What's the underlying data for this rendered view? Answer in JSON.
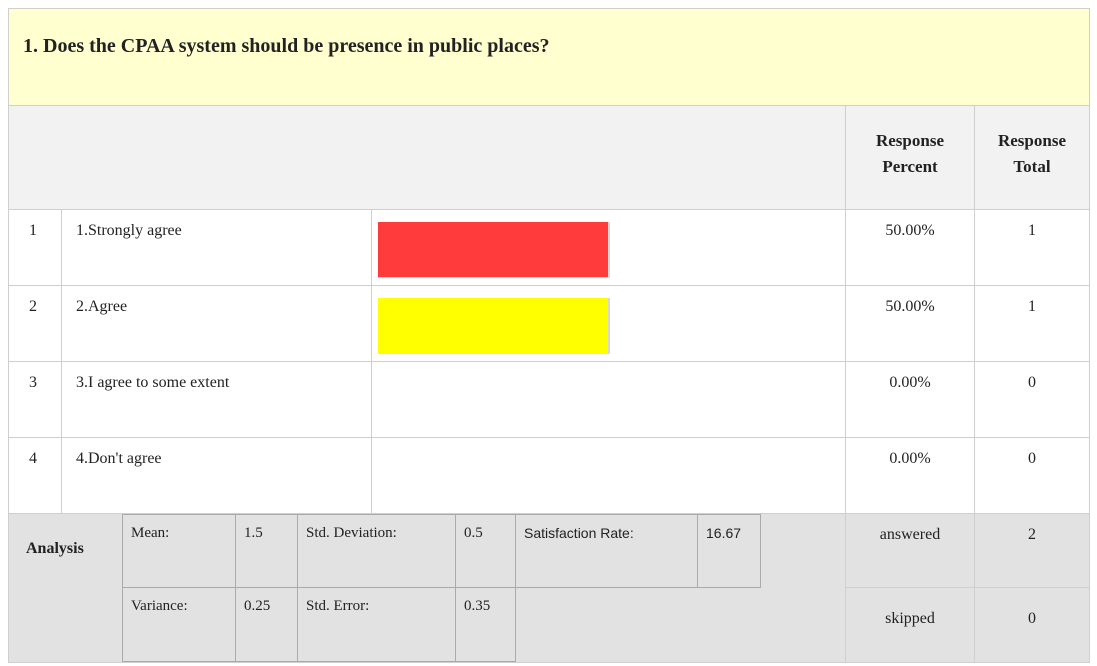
{
  "question": {
    "title": "1. Does the CPAA system should be presence in public places?"
  },
  "table": {
    "headers": [
      "Response Percent",
      "Response Total"
    ],
    "rows": [
      {
        "number": "1",
        "label": "1.Strongly agree",
        "percent": 50,
        "percent_label": "50.00%",
        "total": "1",
        "color": "#ff3b3b"
      },
      {
        "number": "2",
        "label": "2.Agree",
        "percent": 50,
        "percent_label": "50.00%",
        "total": "1",
        "color": "#ffff00"
      },
      {
        "number": "3",
        "label": "3.I agree to some extent",
        "percent": 0,
        "percent_label": "0.00%",
        "total": "0"
      },
      {
        "number": "4",
        "label": "4.Don't agree",
        "percent": 0,
        "percent_label": "0.00%",
        "total": "0"
      }
    ]
  },
  "analysis": {
    "label": "Analysis",
    "stats": [
      [
        "Mean:",
        "1.5",
        "Std. Deviation:",
        "0.5",
        "Satisfaction Rate:",
        "16.67"
      ],
      [
        "Variance:",
        "0.25",
        "Std. Error:",
        "0.35"
      ]
    ],
    "answered_label": "answered",
    "answered": "2",
    "skipped_label": "skipped",
    "skipped": "0"
  }
}
